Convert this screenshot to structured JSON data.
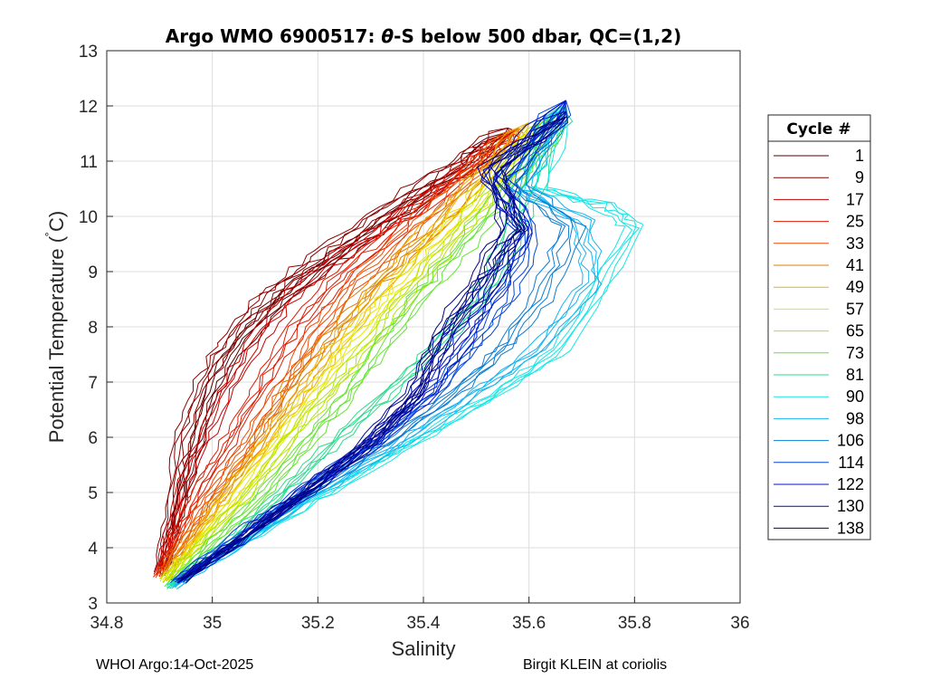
{
  "chart_data": {
    "type": "line",
    "title": "Argo WMO 6900517: θ-S below 500 dbar,  QC=(1,2)",
    "title_parts": {
      "prefix": "Argo WMO 6900517: ",
      "symbol": "θ",
      "suffix": "-S below 500 dbar,  QC=(1,2)"
    },
    "xlabel": "Salinity",
    "ylabel": "Potential Temperature (˚C)",
    "ylabel_parts": {
      "prefix": "Potential Temperature (",
      "degree": "˚",
      "suffix": "C)"
    },
    "xlim": [
      34.8,
      36
    ],
    "ylim": [
      3,
      13
    ],
    "xticks": [
      34.8,
      35,
      35.2,
      35.4,
      35.6,
      35.8,
      36
    ],
    "xtick_labels": [
      "34.8",
      "35",
      "35.2",
      "35.4",
      "35.6",
      "35.8",
      "36"
    ],
    "yticks": [
      3,
      4,
      5,
      6,
      7,
      8,
      9,
      10,
      11,
      12,
      13
    ],
    "ytick_labels": [
      "3",
      "4",
      "5",
      "6",
      "7",
      "8",
      "9",
      "10",
      "11",
      "12",
      "13"
    ],
    "grid": true,
    "legend": {
      "title": "Cycle #",
      "placement": "right-outside",
      "entries": [
        {
          "label": "1",
          "color": "#5a0000"
        },
        {
          "label": "9",
          "color": "#8c0000"
        },
        {
          "label": "17",
          "color": "#c80000"
        },
        {
          "label": "25",
          "color": "#e01a00"
        },
        {
          "label": "33",
          "color": "#f04a00"
        },
        {
          "label": "41",
          "color": "#e07c00"
        },
        {
          "label": "49",
          "color": "#f0b000"
        },
        {
          "label": "57",
          "color": "#e6e600"
        },
        {
          "label": "65",
          "color": "#b4e600"
        },
        {
          "label": "73",
          "color": "#64e632"
        },
        {
          "label": "81",
          "color": "#28dc8c"
        },
        {
          "label": "90",
          "color": "#14e6e6"
        },
        {
          "label": "98",
          "color": "#14b4f0"
        },
        {
          "label": "106",
          "color": "#0a7cd2"
        },
        {
          "label": "114",
          "color": "#0046dc"
        },
        {
          "label": "122",
          "color": "#0014c8"
        },
        {
          "label": "130",
          "color": "#000aa0"
        },
        {
          "label": "138",
          "color": "#000082"
        }
      ]
    },
    "series": [
      {
        "name": "1",
        "color": "#5a0000",
        "s": [
          34.91,
          34.93,
          34.96,
          35.0,
          35.06,
          35.14,
          35.24,
          35.36,
          35.48,
          35.55
        ],
        "t": [
          3.6,
          4.4,
          5.6,
          6.8,
          7.8,
          8.6,
          9.3,
          10.1,
          10.9,
          11.5
        ]
      },
      {
        "name": "9",
        "color": "#8c0000",
        "s": [
          34.9,
          34.92,
          34.94,
          34.98,
          35.04,
          35.12,
          35.22,
          35.34,
          35.47,
          35.56
        ],
        "t": [
          3.6,
          4.5,
          5.9,
          7.0,
          7.9,
          8.7,
          9.4,
          10.2,
          11.0,
          11.6
        ]
      },
      {
        "name": "17",
        "color": "#c80000",
        "s": [
          34.9,
          34.92,
          34.95,
          35.0,
          35.06,
          35.13,
          35.23,
          35.35,
          35.47,
          35.56
        ],
        "t": [
          3.5,
          4.2,
          5.2,
          6.3,
          7.4,
          8.4,
          9.2,
          10.0,
          10.8,
          11.5
        ]
      },
      {
        "name": "25",
        "color": "#e01a00",
        "s": [
          34.9,
          34.93,
          34.97,
          35.03,
          35.09,
          35.16,
          35.25,
          35.36,
          35.48,
          35.57
        ],
        "t": [
          3.5,
          4.2,
          5.0,
          5.9,
          6.9,
          8.0,
          9.0,
          9.9,
          10.8,
          11.5
        ]
      },
      {
        "name": "33",
        "color": "#f04a00",
        "s": [
          34.9,
          34.94,
          34.99,
          35.06,
          35.12,
          35.19,
          35.27,
          35.38,
          35.49,
          35.58
        ],
        "t": [
          3.5,
          4.1,
          4.9,
          5.8,
          6.7,
          7.8,
          8.8,
          9.8,
          10.8,
          11.6
        ]
      },
      {
        "name": "41",
        "color": "#e07c00",
        "s": [
          34.91,
          34.95,
          35.01,
          35.08,
          35.14,
          35.21,
          35.29,
          35.4,
          35.5,
          35.58
        ],
        "t": [
          3.5,
          4.1,
          4.9,
          5.8,
          6.8,
          7.7,
          8.6,
          9.6,
          10.6,
          11.6
        ]
      },
      {
        "name": "49",
        "color": "#f0b000",
        "s": [
          34.91,
          34.96,
          35.03,
          35.1,
          35.17,
          35.23,
          35.3,
          35.39,
          35.49,
          35.6
        ],
        "t": [
          3.4,
          4.1,
          5.0,
          5.9,
          6.8,
          7.6,
          8.5,
          9.5,
          10.5,
          11.7
        ]
      },
      {
        "name": "57",
        "color": "#e6e600",
        "s": [
          34.91,
          34.97,
          35.05,
          35.13,
          35.2,
          35.26,
          35.33,
          35.41,
          35.51,
          35.62
        ],
        "t": [
          3.4,
          4.1,
          5.0,
          6.0,
          6.9,
          7.7,
          8.5,
          9.4,
          10.4,
          11.7
        ]
      },
      {
        "name": "65",
        "color": "#b4e600",
        "s": [
          34.91,
          34.98,
          35.07,
          35.15,
          35.22,
          35.29,
          35.36,
          35.44,
          35.53,
          35.64
        ],
        "t": [
          3.4,
          4.1,
          5.0,
          6.0,
          6.8,
          7.6,
          8.5,
          9.4,
          10.4,
          11.8
        ]
      },
      {
        "name": "73",
        "color": "#64e632",
        "s": [
          34.92,
          35.0,
          35.09,
          35.17,
          35.25,
          35.31,
          35.38,
          35.46,
          35.55,
          35.66
        ],
        "t": [
          3.3,
          4.1,
          4.9,
          5.8,
          6.7,
          7.5,
          8.4,
          9.3,
          10.3,
          11.9
        ]
      },
      {
        "name": "81",
        "color": "#28dc8c",
        "s": [
          34.92,
          35.02,
          35.12,
          35.22,
          35.32,
          35.41,
          35.5,
          35.55,
          35.6,
          35.66
        ],
        "t": [
          3.3,
          4.0,
          4.9,
          5.8,
          6.7,
          7.5,
          8.4,
          9.3,
          10.4,
          12.0
        ]
      },
      {
        "name": "90",
        "color": "#14e6e6",
        "s": [
          34.92,
          35.06,
          35.22,
          35.38,
          35.54,
          35.66,
          35.8,
          35.74,
          35.62,
          35.66
        ],
        "t": [
          3.3,
          4.1,
          5.0,
          5.9,
          6.8,
          7.6,
          9.8,
          10.2,
          10.5,
          12.0
        ]
      },
      {
        "name": "98",
        "color": "#14b4f0",
        "s": [
          34.93,
          35.06,
          35.2,
          35.36,
          35.5,
          35.62,
          35.72,
          35.7,
          35.58,
          35.65
        ],
        "t": [
          3.3,
          4.1,
          5.0,
          5.9,
          6.8,
          7.6,
          8.8,
          9.9,
          10.5,
          11.9
        ]
      },
      {
        "name": "106",
        "color": "#0a7cd2",
        "s": [
          34.93,
          35.04,
          35.18,
          35.33,
          35.46,
          35.55,
          35.62,
          35.68,
          35.58,
          35.67
        ],
        "t": [
          3.4,
          4.1,
          5.0,
          5.9,
          6.8,
          7.6,
          8.5,
          9.8,
          10.6,
          12.0
        ]
      },
      {
        "name": "114",
        "color": "#0046dc",
        "s": [
          34.93,
          35.03,
          35.16,
          35.3,
          35.42,
          35.5,
          35.56,
          35.6,
          35.55,
          35.67
        ],
        "t": [
          3.4,
          4.1,
          5.0,
          5.9,
          6.8,
          7.7,
          8.6,
          9.7,
          10.6,
          12.1
        ]
      },
      {
        "name": "122",
        "color": "#0014c8",
        "s": [
          34.94,
          35.05,
          35.18,
          35.31,
          35.41,
          35.47,
          35.53,
          35.59,
          35.54,
          35.67
        ],
        "t": [
          3.4,
          4.1,
          5.0,
          5.9,
          6.8,
          7.7,
          8.6,
          9.7,
          10.7,
          12.1
        ]
      },
      {
        "name": "130",
        "color": "#000aa0",
        "s": [
          34.94,
          35.04,
          35.17,
          35.29,
          35.38,
          35.44,
          35.52,
          35.58,
          35.53,
          35.67
        ],
        "t": [
          3.4,
          4.1,
          5.0,
          5.9,
          6.8,
          7.8,
          8.7,
          9.8,
          10.8,
          11.9
        ]
      },
      {
        "name": "138",
        "color": "#000082",
        "s": [
          34.94,
          35.05,
          35.18,
          35.3,
          35.39,
          35.43,
          35.5,
          35.57,
          35.53,
          35.67
        ],
        "t": [
          3.4,
          4.1,
          5.0,
          5.9,
          6.8,
          7.8,
          8.8,
          9.8,
          10.9,
          11.8
        ]
      }
    ]
  },
  "footer": {
    "left": "WHOI Argo:14-Oct-2025",
    "right": "Birgit KLEIN at coriolis"
  }
}
